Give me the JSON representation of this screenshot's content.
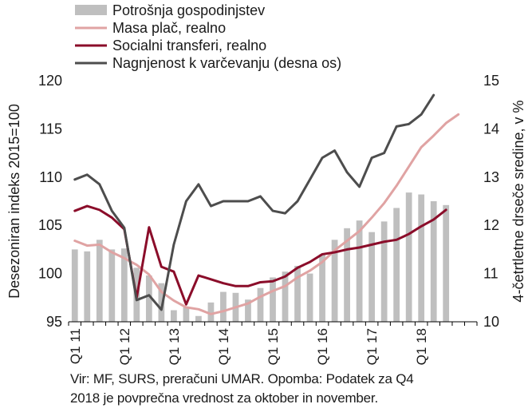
{
  "chart_data": {
    "type": "bar+line",
    "x_tick_labels": [
      "Q1 11",
      "Q1 12",
      "Q1 13",
      "Q1 14",
      "Q1 15",
      "Q1 16",
      "Q1 17",
      "Q1 18"
    ],
    "ylabel_left": "Desezoniran indeks 2015=100",
    "ylabel_right": "4-četrtletne drseče sredine, v %",
    "ylim_left": [
      95,
      120
    ],
    "ylim_right": [
      10,
      15
    ],
    "yticks_left": [
      95,
      100,
      105,
      110,
      115,
      120
    ],
    "yticks_right": [
      10,
      11,
      12,
      13,
      14,
      15
    ],
    "legend_position": "top-left",
    "legend": [
      "Potrošnja gospodinjstev",
      "Masa plač, realno",
      "Socialni transferi, realno",
      "Nagnjenost k varčevanju (desna os)"
    ],
    "series": [
      {
        "name": "Potrošnja gospodinjstev",
        "type": "bar",
        "axis": "left",
        "color": "#bfbfbf",
        "values": [
          102.5,
          102.3,
          103.5,
          102.5,
          102.6,
          100.6,
          99.8,
          99.0,
          96.2,
          96.5,
          95.6,
          97.0,
          98.1,
          98.0,
          97.3,
          98.5,
          99.6,
          100.2,
          100.8,
          100.0,
          102.0,
          103.5,
          104.7,
          105.5,
          104.3,
          105.4,
          106.8,
          108.4,
          108.2,
          107.5,
          107.1
        ]
      },
      {
        "name": "Masa plač, realno",
        "type": "line",
        "axis": "left",
        "color": "#e0a3a3",
        "values": [
          103.4,
          102.9,
          103.0,
          102.2,
          101.6,
          100.9,
          99.9,
          98.1,
          97.2,
          96.5,
          96.3,
          95.8,
          96.1,
          96.5,
          96.9,
          97.6,
          98.2,
          98.7,
          99.6,
          100.3,
          101.2,
          102.4,
          103.4,
          104.4,
          105.8,
          107.3,
          109.1,
          111.1,
          113.1,
          114.3,
          115.6,
          116.5
        ]
      },
      {
        "name": "Socialni transferi, realno",
        "type": "line",
        "axis": "left",
        "color": "#8b0d2a",
        "values": [
          106.5,
          107.0,
          106.6,
          105.8,
          104.6,
          97.5,
          104.8,
          100.7,
          100.2,
          96.8,
          99.8,
          99.4,
          99.0,
          98.7,
          98.7,
          99.1,
          99.2,
          99.7,
          100.6,
          101.2,
          102.0,
          102.2,
          102.5,
          102.7,
          103.0,
          103.3,
          103.5,
          104.1,
          104.9,
          105.6,
          106.6
        ]
      },
      {
        "name": "Nagnjenost k varčevanju (desna os)",
        "type": "line",
        "axis": "right",
        "color": "#4d4d4d",
        "values": [
          12.95,
          13.05,
          12.85,
          12.3,
          11.95,
          10.45,
          10.55,
          10.25,
          11.6,
          12.5,
          12.85,
          12.4,
          12.5,
          12.5,
          12.5,
          12.6,
          12.3,
          12.25,
          12.5,
          12.95,
          13.4,
          13.55,
          13.1,
          12.8,
          13.4,
          13.5,
          14.05,
          14.1,
          14.3,
          14.7
        ]
      }
    ]
  },
  "source_note": {
    "line1": "Vir: MF, SURS, preračuni UMAR. Opomba: Podatek za Q4",
    "line2": "2018  je povprečna vrednost za oktober in november."
  }
}
